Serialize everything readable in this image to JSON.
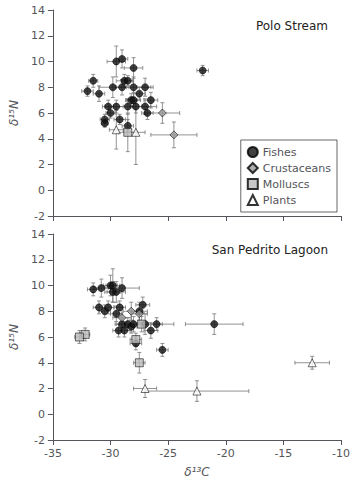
{
  "chart_data": [
    {
      "type": "scatter",
      "title": "Polo Stream",
      "ylabel": "δ¹⁵N",
      "xlim": [
        -35,
        -10
      ],
      "ylim": [
        -2,
        14
      ],
      "xticks": [
        -35,
        -30,
        -25,
        -20,
        -15,
        -10
      ],
      "yticks": [
        -2,
        0,
        2,
        4,
        6,
        8,
        10,
        12,
        14
      ],
      "tick_labels": "y",
      "grid": false,
      "legend": "lower right",
      "series": [
        {
          "name": "Fishes",
          "color": "#111111",
          "marker": "circle",
          "x": [
            -32.0,
            -31.5,
            -31.0,
            -30.5,
            -30.5,
            -30.2,
            -30.0,
            -29.8,
            -29.5,
            -29.5,
            -29.2,
            -29.0,
            -29.0,
            -28.8,
            -28.5,
            -28.5,
            -28.5,
            -28.2,
            -28.0,
            -28.0,
            -28.0,
            -27.8,
            -27.5,
            -27.0,
            -27.0,
            -26.8,
            -26.5,
            -22.0
          ],
          "values": [
            7.7,
            8.5,
            7.5,
            5.5,
            5.2,
            6.5,
            6.0,
            8.0,
            10.0,
            6.5,
            5.5,
            8.0,
            10.2,
            8.5,
            8.5,
            6.5,
            5.0,
            7.0,
            9.5,
            8.0,
            7.0,
            6.5,
            7.5,
            8.0,
            6.5,
            6.0,
            7.0,
            9.3
          ],
          "xerr": [
            0.5,
            0.4,
            0.5,
            0.4,
            0.3,
            0.5,
            0.4,
            1.2,
            0.8,
            0.6,
            0.5,
            0.6,
            0.5,
            0.7,
            0.5,
            2.0,
            0.5,
            0.5,
            0.8,
            1.5,
            0.6,
            0.5,
            0.5,
            0.7,
            1.0,
            0.5,
            0.6,
            0.5
          ],
          "yerr": [
            0.4,
            0.5,
            0.6,
            0.4,
            0.3,
            0.5,
            0.4,
            0.8,
            1.2,
            0.5,
            0.4,
            0.6,
            0.7,
            0.5,
            0.4,
            0.6,
            0.5,
            0.5,
            0.8,
            0.8,
            0.6,
            0.5,
            0.5,
            0.7,
            0.6,
            0.5,
            0.6,
            0.4
          ]
        },
        {
          "name": "Crustaceans",
          "color": "#999999",
          "marker": "diamond",
          "x": [
            -25.5,
            -24.5
          ],
          "values": [
            6.0,
            4.3
          ],
          "xerr": [
            1.5,
            2.0
          ],
          "yerr": [
            0.8,
            1.0
          ]
        },
        {
          "name": "Molluscs",
          "color": "#bbbbbb",
          "marker": "square",
          "x": [
            -28.5
          ],
          "values": [
            4.5
          ],
          "xerr": [
            0.8
          ],
          "yerr": [
            1.5
          ]
        },
        {
          "name": "Plants",
          "color": "#ffffff",
          "marker": "triangle",
          "x": [
            -29.5,
            -27.8
          ],
          "values": [
            4.7,
            4.5
          ],
          "xerr": [
            0.6,
            0.8
          ],
          "yerr": [
            1.5,
            2.5
          ]
        }
      ]
    },
    {
      "type": "scatter",
      "title": "San Pedrito Lagoon",
      "xlabel": "δ¹³C",
      "ylabel": "δ¹⁵N",
      "xlim": [
        -35,
        -10
      ],
      "ylim": [
        -2,
        14
      ],
      "xticks": [
        -35,
        -30,
        -25,
        -20,
        -15,
        -10
      ],
      "yticks": [
        -2,
        0,
        2,
        4,
        6,
        8,
        10,
        12,
        14
      ],
      "grid": false,
      "series": [
        {
          "name": "Fishes",
          "color": "#111111",
          "marker": "circle",
          "x": [
            -31.5,
            -31.0,
            -30.8,
            -30.5,
            -30.2,
            -30.0,
            -29.8,
            -29.8,
            -29.5,
            -29.5,
            -29.3,
            -29.2,
            -29.0,
            -29.0,
            -28.8,
            -28.5,
            -28.2,
            -28.0,
            -27.8,
            -27.5,
            -27.2,
            -27.0,
            -26.5,
            -26.0,
            -25.5,
            -21.0
          ],
          "values": [
            9.7,
            8.3,
            9.8,
            8.0,
            8.3,
            10.0,
            9.5,
            10.0,
            7.8,
            9.5,
            6.5,
            8.3,
            7.0,
            9.8,
            6.5,
            7.0,
            6.8,
            7.0,
            5.5,
            8.0,
            8.5,
            7.0,
            6.5,
            7.0,
            5.0,
            7.0
          ],
          "xerr": [
            0.5,
            0.5,
            0.6,
            0.5,
            0.5,
            0.6,
            0.7,
            0.6,
            0.5,
            0.8,
            0.5,
            0.5,
            0.6,
            1.5,
            0.5,
            0.5,
            0.5,
            0.6,
            0.5,
            0.7,
            0.6,
            2.5,
            0.6,
            0.5,
            0.5,
            2.5
          ],
          "yerr": [
            0.5,
            0.5,
            0.7,
            0.5,
            0.5,
            0.8,
            0.8,
            1.3,
            0.6,
            0.8,
            0.5,
            0.5,
            0.5,
            0.8,
            0.5,
            0.5,
            0.5,
            0.6,
            0.5,
            0.7,
            0.6,
            0.8,
            0.6,
            0.5,
            0.5,
            0.8
          ]
        },
        {
          "name": "Crustaceans",
          "color": "#999999",
          "marker": "diamond",
          "x": [
            -29.0,
            -28.2,
            -27.5
          ],
          "values": [
            7.5,
            8.0,
            7.8
          ],
          "xerr": [
            0.8,
            0.7,
            0.7
          ],
          "yerr": [
            0.8,
            0.7,
            0.7
          ]
        },
        {
          "name": "Molluscs",
          "color": "#bbbbbb",
          "marker": "square",
          "x": [
            -32.2,
            -32.7,
            -27.5,
            -27.8,
            -27.3
          ],
          "values": [
            6.2,
            6.0,
            4.0,
            5.8,
            7.0
          ],
          "xerr": [
            0.4,
            0.4,
            0.5,
            0.5,
            0.6
          ],
          "yerr": [
            0.5,
            0.5,
            0.8,
            0.5,
            0.6
          ]
        },
        {
          "name": "Plants",
          "color": "#ffffff",
          "marker": "triangle",
          "x": [
            -27.0,
            -22.5,
            -12.5
          ],
          "values": [
            2.0,
            1.8,
            4.0
          ],
          "xerr": [
            1.0,
            4.5,
            1.5
          ],
          "yerr": [
            0.7,
            0.8,
            0.5
          ]
        }
      ]
    }
  ]
}
